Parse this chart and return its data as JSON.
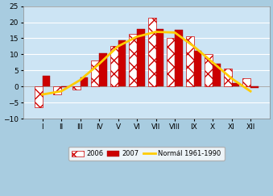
{
  "months": [
    "I",
    "II",
    "III",
    "IV",
    "V",
    "VI",
    "VII",
    "VIII",
    "IX",
    "X",
    "XI",
    "XII"
  ],
  "data_2006": [
    -6.5,
    -2.5,
    -1.0,
    8.0,
    12.5,
    16.5,
    21.5,
    15.0,
    15.5,
    10.0,
    5.5,
    2.5
  ],
  "data_2007": [
    3.2,
    -0.2,
    2.8,
    10.3,
    14.3,
    18.0,
    18.0,
    17.6,
    11.2,
    7.0,
    1.1,
    -0.5
  ],
  "normal": [
    -2.5,
    -1.5,
    2.0,
    7.0,
    12.5,
    15.5,
    17.0,
    16.8,
    12.5,
    7.5,
    2.5,
    -1.5
  ],
  "bar_color_2006_face": "#ffffff",
  "bar_color_2006_hatch": "#cc0000",
  "bar_color_2007": "#cc0000",
  "hatch_2006": "xx",
  "line_color": "#ffcc00",
  "background_plot": "#cce4f4",
  "background_fig": "#a8cce0",
  "ylim": [
    -10,
    25
  ],
  "yticks": [
    -10,
    -5,
    0,
    5,
    10,
    15,
    20,
    25
  ],
  "legend_2006": "2006",
  "legend_2007": "2007",
  "legend_normal": "Normál 1961-1990"
}
